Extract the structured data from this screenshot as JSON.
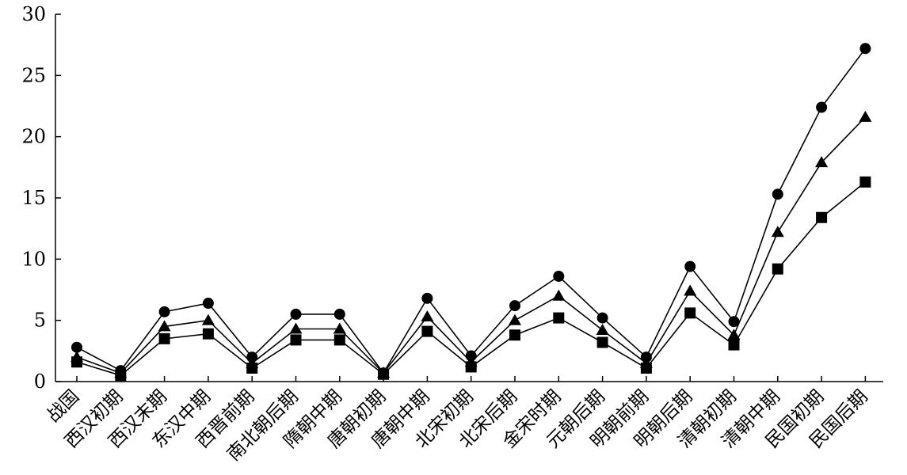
{
  "chart_data": {
    "type": "line",
    "title": "",
    "xlabel": "",
    "ylabel": "",
    "ylim": [
      0,
      30
    ],
    "yticks": [
      0,
      5,
      10,
      15,
      20,
      25,
      30
    ],
    "grid": false,
    "legend": "none",
    "categories": [
      "战国",
      "西汉初期",
      "西汉末期",
      "东汉中期",
      "西晋前期",
      "南北朝后期",
      "隋朝中期",
      "唐朝初期",
      "唐朝中期",
      "北宋初期",
      "北宋后期",
      "金宋时期",
      "元朝后期",
      "明朝前期",
      "明朝后期",
      "清朝初期",
      "清朝中期",
      "民国初期",
      "民国后期"
    ],
    "series": [
      {
        "marker": "circle",
        "color": "#000000",
        "values": [
          2.8,
          0.9,
          5.7,
          6.4,
          2.0,
          5.5,
          5.5,
          0.7,
          6.8,
          2.1,
          6.2,
          8.6,
          5.2,
          2.0,
          9.4,
          4.9,
          15.3,
          22.4,
          27.2
        ]
      },
      {
        "marker": "triangle",
        "color": "#000000",
        "values": [
          2.0,
          0.7,
          4.5,
          5.0,
          1.5,
          4.3,
          4.3,
          0.7,
          5.3,
          1.6,
          5.0,
          7.0,
          4.2,
          1.5,
          7.4,
          3.8,
          12.2,
          17.9,
          21.6
        ]
      },
      {
        "marker": "square",
        "color": "#000000",
        "values": [
          1.6,
          0.5,
          3.5,
          3.9,
          1.1,
          3.4,
          3.4,
          0.6,
          4.1,
          1.2,
          3.8,
          5.2,
          3.2,
          1.1,
          5.6,
          3.0,
          9.2,
          13.4,
          16.3
        ]
      }
    ]
  }
}
